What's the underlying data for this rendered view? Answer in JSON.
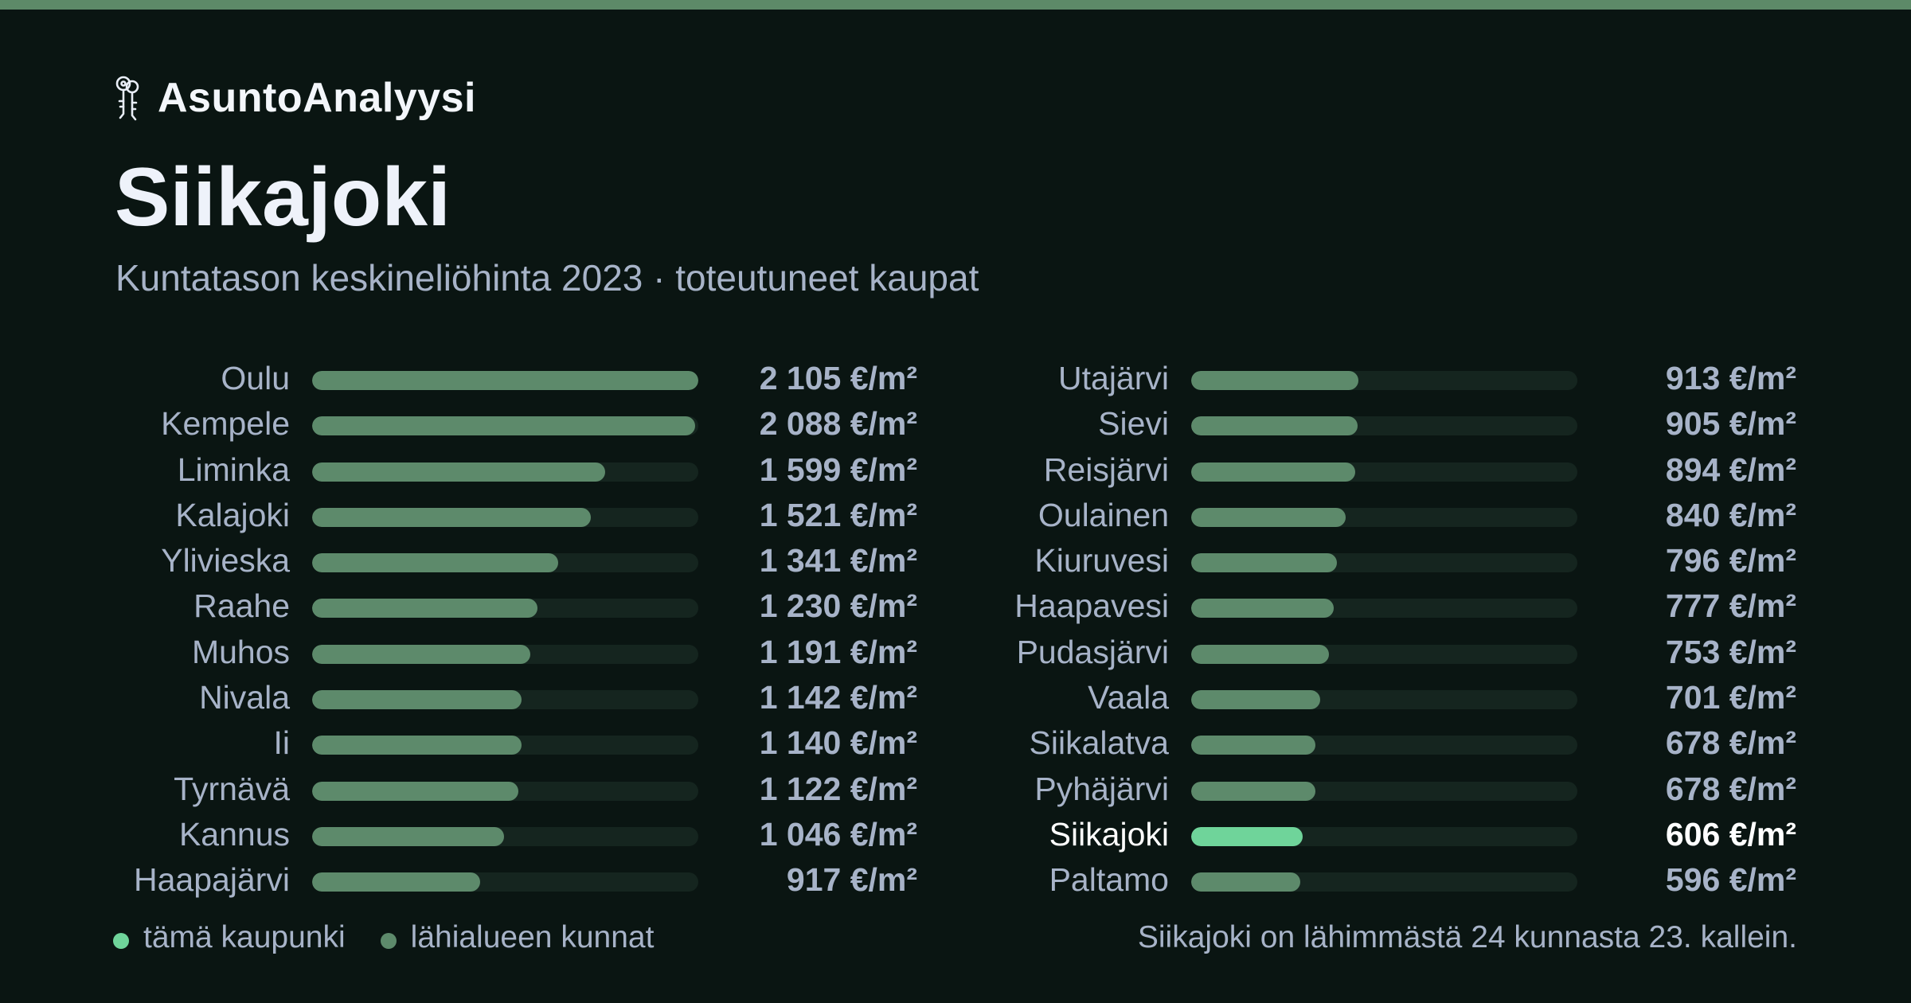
{
  "brand": {
    "name": "AsuntoAnalyysi",
    "icon": "keys-icon"
  },
  "title": "Siikajoki",
  "subtitle": "Kuntatason keskineliöhinta 2023 · toteutuneet kaupat",
  "colors": {
    "background": "#0a1512",
    "accent": "#5d8a68",
    "bar": "#5d8a6b",
    "highlight_bar": "#6fd49a",
    "track": "#15251f",
    "text_muted": "#a7b3c8",
    "text_strong": "#ffffff"
  },
  "chart_data": {
    "type": "bar",
    "orientation": "horizontal",
    "unit": "€/m²",
    "xlim": [
      0,
      2105
    ],
    "highlight": "Siikajoki",
    "categories": [
      "Oulu",
      "Kempele",
      "Liminka",
      "Kalajoki",
      "Ylivieska",
      "Raahe",
      "Muhos",
      "Nivala",
      "Ii",
      "Tyrnävä",
      "Kannus",
      "Haapajärvi",
      "Utajärvi",
      "Sievi",
      "Reisjärvi",
      "Oulainen",
      "Kiuruvesi",
      "Haapavesi",
      "Pudasjärvi",
      "Vaala",
      "Siikalatva",
      "Pyhäjärvi",
      "Siikajoki",
      "Paltamo"
    ],
    "values": [
      2105,
      2088,
      1599,
      1521,
      1341,
      1230,
      1191,
      1142,
      1140,
      1122,
      1046,
      917,
      913,
      905,
      894,
      840,
      796,
      777,
      753,
      701,
      678,
      678,
      606,
      596
    ],
    "value_labels": [
      "2 105 €/m²",
      "2 088 €/m²",
      "1 599 €/m²",
      "1 521 €/m²",
      "1 341 €/m²",
      "1 230 €/m²",
      "1 191 €/m²",
      "1 142 €/m²",
      "1 140 €/m²",
      "1 122 €/m²",
      "1 046 €/m²",
      "917 €/m²",
      "913 €/m²",
      "905 €/m²",
      "894 €/m²",
      "840 €/m²",
      "796 €/m²",
      "777 €/m²",
      "753 €/m²",
      "701 €/m²",
      "678 €/m²",
      "678 €/m²",
      "606 €/m²",
      "596 €/m²"
    ],
    "legend": [
      {
        "label": "tämä kaupunki",
        "color": "#6fd49a"
      },
      {
        "label": "lähialueen kunnat",
        "color": "#5d8a6b"
      }
    ]
  },
  "footer_note": "Siikajoki on lähimmästä 24 kunnasta 23. kallein."
}
